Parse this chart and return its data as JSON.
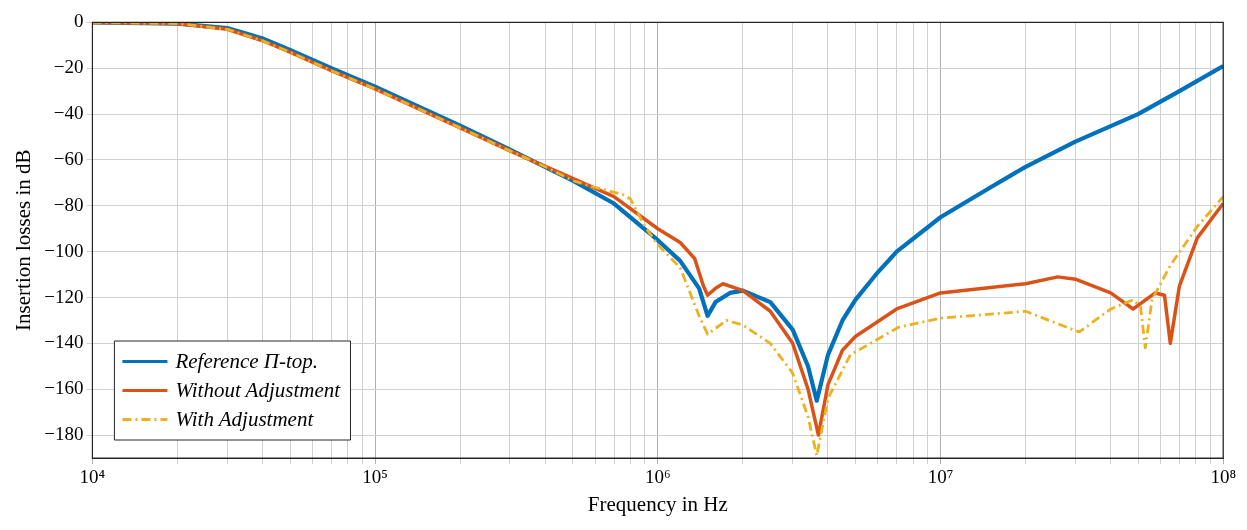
{
  "chart_data": {
    "type": "line",
    "xlabel": "Frequency in Hz",
    "ylabel": "Insertion losses in dB",
    "log": "x",
    "grid": true,
    "legend": "bottom left",
    "marker": "none",
    "xlim": [
      10000,
      100000000
    ],
    "xticks": [
      {
        "value": 10000,
        "label": "10⁴"
      },
      {
        "value": 20000,
        "label": null
      },
      {
        "value": 30000,
        "label": null
      },
      {
        "value": 40000,
        "label": null
      },
      {
        "value": 50000,
        "label": null
      },
      {
        "value": 60000,
        "label": null
      },
      {
        "value": 70000,
        "label": null
      },
      {
        "value": 80000,
        "label": null
      },
      {
        "value": 90000,
        "label": null
      },
      {
        "value": 100000,
        "label": "10⁵"
      },
      {
        "value": 200000,
        "label": null
      },
      {
        "value": 300000,
        "label": null
      },
      {
        "value": 400000,
        "label": null
      },
      {
        "value": 500000,
        "label": null
      },
      {
        "value": 600000,
        "label": null
      },
      {
        "value": 700000,
        "label": null
      },
      {
        "value": 800000,
        "label": null
      },
      {
        "value": 900000,
        "label": null
      },
      {
        "value": 1000000,
        "label": "10⁶"
      },
      {
        "value": 2000000,
        "label": null
      },
      {
        "value": 3000000,
        "label": null
      },
      {
        "value": 4000000,
        "label": null
      },
      {
        "value": 5000000,
        "label": null
      },
      {
        "value": 6000000,
        "label": null
      },
      {
        "value": 7000000,
        "label": null
      },
      {
        "value": 8000000,
        "label": null
      },
      {
        "value": 9000000,
        "label": null
      },
      {
        "value": 10000000,
        "label": "10⁷"
      },
      {
        "value": 20000000,
        "label": null
      },
      {
        "value": 30000000,
        "label": null
      },
      {
        "value": 40000000,
        "label": null
      },
      {
        "value": 50000000,
        "label": null
      },
      {
        "value": 60000000,
        "label": null
      },
      {
        "value": 70000000,
        "label": null
      },
      {
        "value": 80000000,
        "label": null
      },
      {
        "value": 90000000,
        "label": null
      },
      {
        "value": 100000000,
        "label": "10⁸"
      }
    ],
    "ylim": [
      -190,
      0
    ],
    "yticks": [
      -180,
      -160,
      -140,
      -120,
      -100,
      -80,
      -60,
      -40,
      -20,
      0
    ],
    "series": [
      {
        "name": "Reference Π-top.",
        "color": "#0072bd",
        "line_style": "solid",
        "x": [
          10000,
          20000,
          30000,
          40000,
          50000,
          70000,
          100000,
          200000,
          300000,
          500000,
          700000,
          1000000,
          1200000,
          1400000,
          1500000,
          1600000,
          1800000,
          2000000,
          2500000,
          3000000,
          3400000,
          3650000,
          4000000,
          4500000,
          5000000,
          6000000,
          7000000,
          10000000,
          15000000,
          20000000,
          30000000,
          50000000,
          70000000,
          100000000
        ],
        "values": [
          0,
          -0.5,
          -2.5,
          -7,
          -12,
          -20,
          -28,
          -45,
          -55.5,
          -69,
          -79,
          -95,
          -104,
          -116,
          -128,
          -122,
          -118,
          -117,
          -122,
          -134,
          -150,
          -165,
          -145,
          -130,
          -121,
          -109,
          -100,
          -85,
          -72,
          -63,
          -52,
          -40,
          -30,
          -19
        ]
      },
      {
        "name": "Without Adjustment",
        "color": "#d95319",
        "line_style": "solid",
        "x": [
          10000,
          20000,
          30000,
          40000,
          50000,
          70000,
          100000,
          200000,
          300000,
          500000,
          700000,
          1000000,
          1200000,
          1350000,
          1450000,
          1500000,
          1600000,
          1700000,
          2000000,
          2500000,
          3000000,
          3400000,
          3700000,
          4000000,
          4500000,
          5000000,
          7000000,
          10000000,
          20000000,
          26000000,
          30000000,
          40000000,
          48000000,
          57500000,
          62000000,
          65000000,
          70000000,
          81000000,
          100000000
        ],
        "values": [
          0,
          -0.5,
          -3,
          -8,
          -13,
          -21,
          -29,
          -46,
          -56,
          -68,
          -76,
          -90,
          -96,
          -103,
          -115,
          -119,
          -116,
          -114,
          -117,
          -126,
          -140,
          -160,
          -180,
          -158,
          -143,
          -137,
          -125,
          -118,
          -114,
          -111,
          -112,
          -118,
          -125,
          -118,
          -119,
          -140,
          -115,
          -94,
          -79
        ]
      },
      {
        "name": "With Adjustment",
        "color": "#edb120",
        "line_style": "dashed",
        "x": [
          10000,
          20000,
          30000,
          40000,
          50000,
          70000,
          100000,
          200000,
          300000,
          400000,
          500000,
          600000,
          750000,
          800000,
          900000,
          1000000,
          1200000,
          1400000,
          1500000,
          1750000,
          2000000,
          2500000,
          3000000,
          3400000,
          3650000,
          4000000,
          4800000,
          7100000,
          10000000,
          20000000,
          28000000,
          31000000,
          40000000,
          48000000,
          51000000,
          53000000,
          56000000,
          65000000,
          81000000,
          100000000
        ],
        "values": [
          0,
          -0.5,
          -3,
          -8,
          -13,
          -21,
          -29,
          -46,
          -56,
          -63,
          -69,
          -72,
          -75,
          -77,
          -89,
          -97,
          -107,
          -128,
          -136,
          -130,
          -132,
          -140,
          -153,
          -172,
          -189,
          -164,
          -145,
          -133,
          -129,
          -126,
          -133,
          -135,
          -125,
          -121,
          -124,
          -142,
          -121,
          -106,
          -89,
          -76
        ]
      }
    ]
  }
}
